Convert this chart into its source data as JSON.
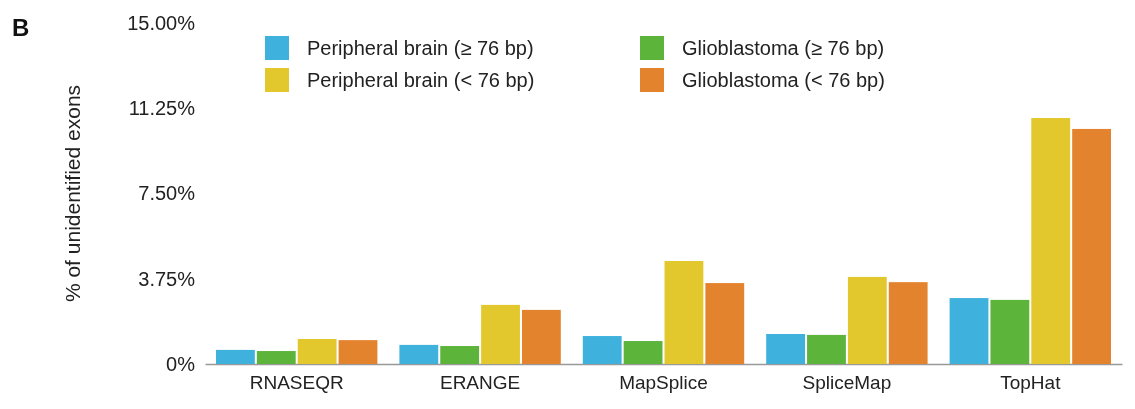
{
  "chart_data": {
    "type": "bar",
    "ylabel": "% of unidentified exons",
    "annotations": [
      "B"
    ],
    "categories": [
      "RNASEQR",
      "ERANGE",
      "MapSplice",
      "SpliceMap",
      "TopHat"
    ],
    "series": [
      {
        "name": "Peripheral brain (≥ 76 bp)",
        "color": "#3eb1dd",
        "values": [
          0.62,
          0.84,
          1.23,
          1.32,
          2.9
        ]
      },
      {
        "name": "Glioblastoma (≥ 76 bp)",
        "color": "#5cb43b",
        "values": [
          0.57,
          0.79,
          1.01,
          1.28,
          2.82
        ]
      },
      {
        "name": "Peripheral brain (< 76 bp)",
        "color": "#e2c82c",
        "values": [
          1.1,
          2.6,
          4.53,
          3.83,
          10.82
        ]
      },
      {
        "name": "Glioblastoma (< 76 bp)",
        "color": "#e4832e",
        "values": [
          1.05,
          2.38,
          3.56,
          3.6,
          10.34
        ]
      }
    ],
    "ylim": [
      0,
      15
    ],
    "yticks": [
      {
        "value": 0,
        "label": "0%"
      },
      {
        "value": 3.75,
        "label": "3.75%"
      },
      {
        "value": 7.5,
        "label": "7.50%"
      },
      {
        "value": 11.25,
        "label": "11.25%"
      },
      {
        "value": 15,
        "label": "15.00%"
      }
    ],
    "legend": "top left",
    "grid": false
  }
}
